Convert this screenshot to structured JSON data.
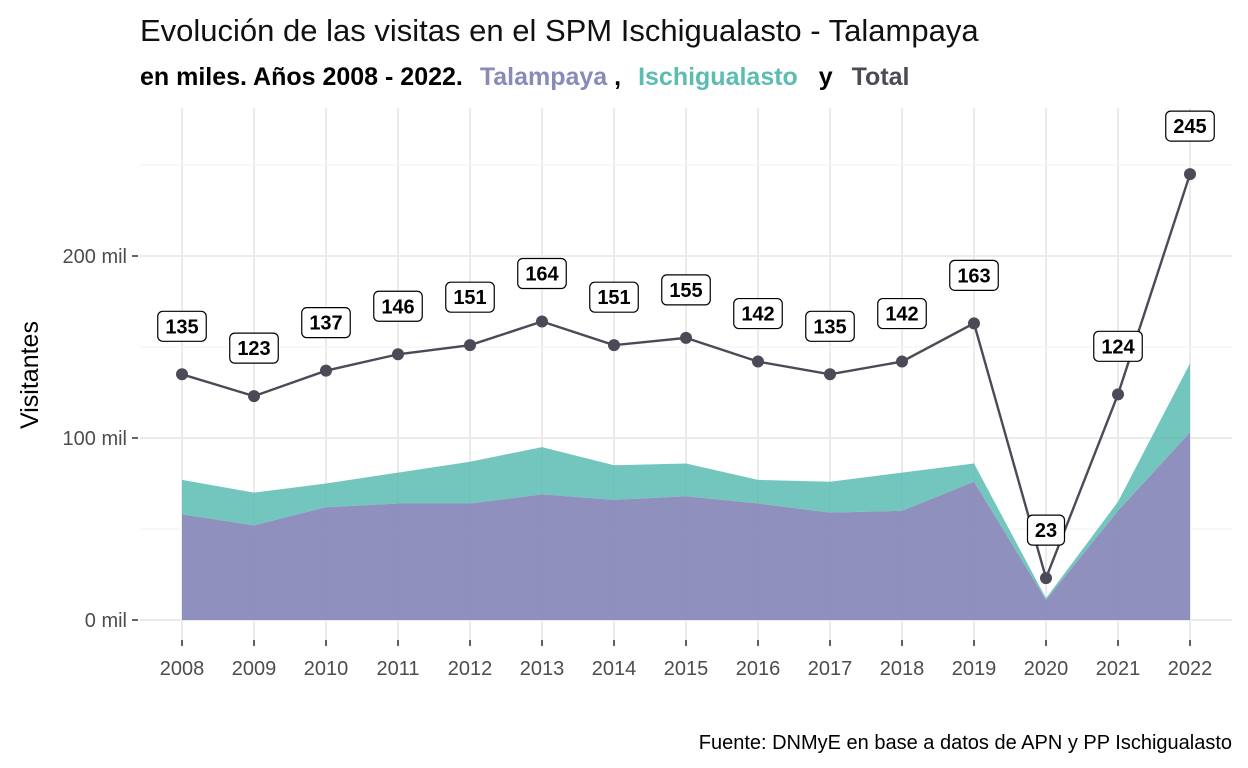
{
  "chart_data": {
    "type": "area",
    "title": "Evolución de las visitas en el SPM Ischigualasto - Talampaya",
    "subtitle": {
      "prefix": "en miles. Años 2008 - 2022.",
      "sep1": ",",
      "sep2": "y",
      "series_names": [
        "Talampaya",
        "Ischigualasto",
        "Total"
      ]
    },
    "ylabel": "Visitantes",
    "caption": "Fuente: DNMyE en base a datos de APN y PP Ischigualasto",
    "x": [
      2008,
      2009,
      2010,
      2011,
      2012,
      2013,
      2014,
      2015,
      2016,
      2017,
      2018,
      2019,
      2020,
      2021,
      2022
    ],
    "x_tick_labels": [
      "2008",
      "2009",
      "2010",
      "2011",
      "2012",
      "2013",
      "2014",
      "2015",
      "2016",
      "2017",
      "2018",
      "2019",
      "2020",
      "2021",
      "2022"
    ],
    "y_ticks": [
      0,
      100,
      200
    ],
    "y_tick_labels": [
      "0 mil",
      "100 mil",
      "200 mil"
    ],
    "ylim": [
      -12,
      282
    ],
    "grid": true,
    "series": [
      {
        "name": "Talampaya",
        "kind": "stacked-area",
        "color": "#8a8aba",
        "values": [
          58,
          52,
          62,
          64,
          64,
          69,
          66,
          68,
          64,
          59,
          60,
          76,
          11,
          60,
          103
        ]
      },
      {
        "name": "Ischigualasto",
        "kind": "stacked-area",
        "color": "#5bbcb1",
        "values": [
          19,
          18,
          13,
          17,
          23,
          26,
          19,
          18,
          13,
          17,
          21,
          10,
          1,
          5,
          38
        ]
      },
      {
        "name": "Total",
        "kind": "line",
        "color": "#4b4b57",
        "values": [
          135,
          123,
          137,
          146,
          151,
          164,
          151,
          155,
          142,
          135,
          142,
          163,
          23,
          124,
          245
        ],
        "data_labels": [
          "135",
          "123",
          "137",
          "146",
          "151",
          "164",
          "151",
          "155",
          "142",
          "135",
          "142",
          "163",
          "23",
          "124",
          "245"
        ]
      }
    ]
  }
}
